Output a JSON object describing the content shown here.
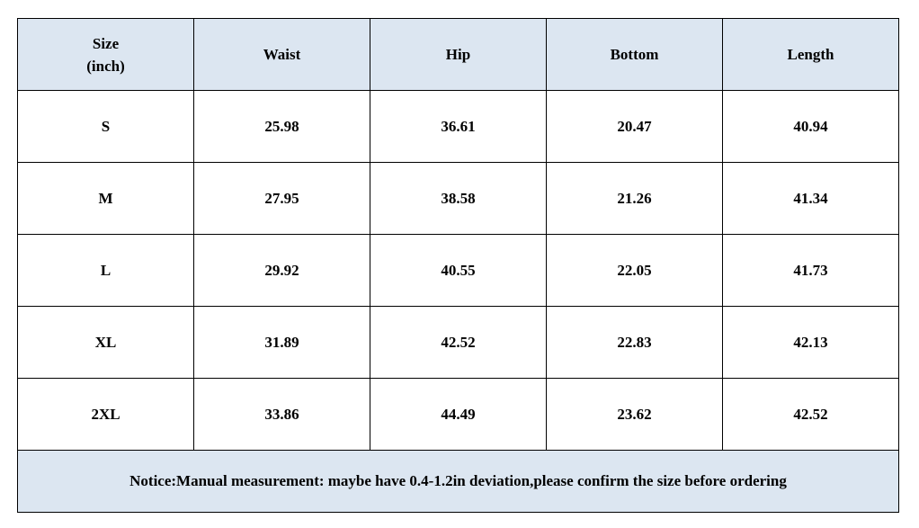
{
  "header": {
    "size_line1": "Size",
    "size_line2": "(inch)",
    "columns": [
      "Waist",
      "Hip",
      "Bottom",
      "Length"
    ]
  },
  "rows": [
    {
      "size": "S",
      "values": [
        "25.98",
        "36.61",
        "20.47",
        "40.94"
      ]
    },
    {
      "size": "M",
      "values": [
        "27.95",
        "38.58",
        "21.26",
        "41.34"
      ]
    },
    {
      "size": "L",
      "values": [
        "29.92",
        "40.55",
        "22.05",
        "41.73"
      ]
    },
    {
      "size": "XL",
      "values": [
        "31.89",
        "42.52",
        "22.83",
        "42.13"
      ]
    },
    {
      "size": "2XL",
      "values": [
        "33.86",
        "44.49",
        "23.62",
        "42.52"
      ]
    }
  ],
  "notice": "Notice:Manual measurement: maybe have 0.4-1.2in deviation,please confirm the size before ordering",
  "colors": {
    "header_bg": "#dce6f1",
    "border": "#000000"
  }
}
